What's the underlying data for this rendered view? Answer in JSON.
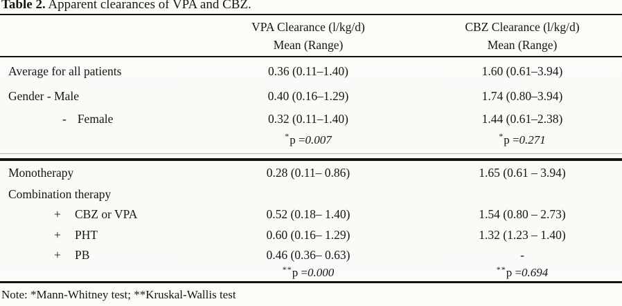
{
  "title": {
    "bold": "Table 2.",
    "rest": " Apparent clearances of VPA and CBZ."
  },
  "header": {
    "vpa_line1": "VPA Clearance (l/kg/d)",
    "vpa_line2": "Mean (Range)",
    "cbz_line1": "CBZ Clearance (l/kg/d)",
    "cbz_line2": "Mean (Range)"
  },
  "rows": [
    {
      "label": "Average for all patients",
      "vpa": "0.36 (0.11–1.40)",
      "cbz": "1.60 (0.61–3.94)"
    },
    {
      "label": "Gender - Male",
      "vpa": "0.40 (0.16–1.29)",
      "cbz": "1.74 (0.80–3.94)"
    },
    {
      "dash": "-",
      "label": "Female",
      "vpa": "0.32 (0.11–1.40)",
      "cbz": "1.44 (0.61–2.38)"
    },
    {
      "vpa_star": "*",
      "vpa_p": "p = ",
      "vpa_val": "0.007",
      "cbz_star": "*",
      "cbz_p": "p = ",
      "cbz_val": "0.271"
    },
    {
      "label": "Monotherapy",
      "vpa": "0.28 (0.11– 0.86)",
      "cbz": "1.65 (0.61 – 3.94)"
    },
    {
      "label": "Combination therapy",
      "vpa": "",
      "cbz": ""
    },
    {
      "plus": "+",
      "label": "CBZ or VPA",
      "vpa": "0.52 (0.18– 1.40)",
      "cbz": "1.54 (0.80 – 2.73)"
    },
    {
      "plus": "+",
      "label": "PHT",
      "vpa": "0.60 (0.16– 1.29)",
      "cbz": "1.32 (1.23 – 1.40)"
    },
    {
      "plus": "+",
      "label": "PB",
      "vpa": "0.46 (0.36– 0.63)",
      "cbz": "-"
    },
    {
      "vpa_star": "**",
      "vpa_p": " p = ",
      "vpa_val": "0.000",
      "cbz_star": "**",
      "cbz_p": "p = ",
      "cbz_val": "0.694"
    }
  ],
  "note": "Note: *Mann-Whitney test; **Kruskal-Wallis test",
  "colors": {
    "text": "#161616",
    "rule": "#131313",
    "background": "#fbfbf8"
  }
}
